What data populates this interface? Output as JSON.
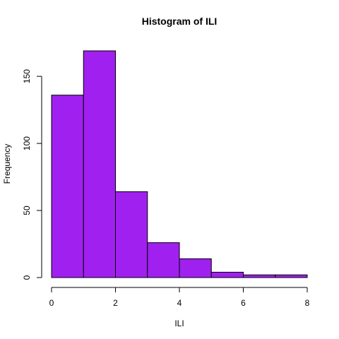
{
  "chart_data": {
    "type": "bar",
    "title": "Histogram of ILI",
    "xlabel": "ILI",
    "ylabel": "Frequency",
    "bins": [
      {
        "start": 0,
        "end": 1,
        "value": 136
      },
      {
        "start": 1,
        "end": 2,
        "value": 169
      },
      {
        "start": 2,
        "end": 3,
        "value": 64
      },
      {
        "start": 3,
        "end": 4,
        "value": 26
      },
      {
        "start": 4,
        "end": 5,
        "value": 14
      },
      {
        "start": 5,
        "end": 6,
        "value": 4
      },
      {
        "start": 6,
        "end": 7,
        "value": 2
      },
      {
        "start": 7,
        "end": 8,
        "value": 2
      }
    ],
    "xlim": [
      0,
      8
    ],
    "ylim": [
      0,
      169
    ],
    "x_ticks": [
      0,
      2,
      4,
      6,
      8
    ],
    "y_ticks": [
      0,
      50,
      100,
      150
    ],
    "bar_color": "#A020F0",
    "grid": false,
    "legend": "none"
  }
}
